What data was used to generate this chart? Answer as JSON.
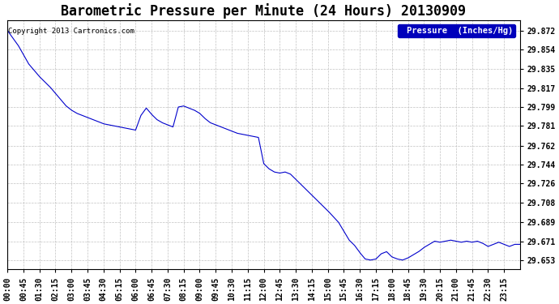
{
  "title": "Barometric Pressure per Minute (24 Hours) 20130909",
  "copyright_text": "Copyright 2013 Cartronics.com",
  "legend_label": "Pressure  (Inches/Hg)",
  "legend_bg": "#0000bb",
  "legend_fg": "#ffffff",
  "line_color": "#0000cc",
  "bg_color": "#ffffff",
  "grid_color": "#bbbbbb",
  "yticks": [
    29.653,
    29.671,
    29.689,
    29.708,
    29.726,
    29.744,
    29.762,
    29.781,
    29.799,
    29.817,
    29.835,
    29.854,
    29.872
  ],
  "ylim": [
    29.644,
    29.882
  ],
  "xtick_labels": [
    "00:00",
    "00:45",
    "01:30",
    "02:15",
    "03:00",
    "03:45",
    "04:30",
    "05:15",
    "06:00",
    "06:45",
    "07:30",
    "08:15",
    "09:00",
    "09:45",
    "10:30",
    "11:15",
    "12:00",
    "12:45",
    "13:30",
    "14:15",
    "15:00",
    "15:45",
    "16:30",
    "17:15",
    "18:00",
    "18:45",
    "19:30",
    "20:15",
    "21:00",
    "21:45",
    "22:30",
    "23:15"
  ],
  "title_fontsize": 12,
  "tick_fontsize": 7,
  "copyright_fontsize": 6.5,
  "legend_fontsize": 7.5,
  "keypoints": [
    [
      0,
      29.872
    ],
    [
      30,
      29.858
    ],
    [
      60,
      29.84
    ],
    [
      90,
      29.828
    ],
    [
      120,
      29.818
    ],
    [
      135,
      29.812
    ],
    [
      150,
      29.806
    ],
    [
      165,
      29.8
    ],
    [
      180,
      29.796
    ],
    [
      195,
      29.793
    ],
    [
      210,
      29.791
    ],
    [
      225,
      29.789
    ],
    [
      240,
      29.787
    ],
    [
      255,
      29.785
    ],
    [
      270,
      29.783
    ],
    [
      285,
      29.782
    ],
    [
      300,
      29.781
    ],
    [
      315,
      29.78
    ],
    [
      330,
      29.779
    ],
    [
      345,
      29.778
    ],
    [
      360,
      29.777
    ],
    [
      375,
      29.791
    ],
    [
      390,
      29.798
    ],
    [
      405,
      29.792
    ],
    [
      420,
      29.787
    ],
    [
      435,
      29.784
    ],
    [
      450,
      29.782
    ],
    [
      465,
      29.78
    ],
    [
      480,
      29.799
    ],
    [
      495,
      29.8
    ],
    [
      510,
      29.798
    ],
    [
      525,
      29.796
    ],
    [
      540,
      29.793
    ],
    [
      555,
      29.788
    ],
    [
      570,
      29.784
    ],
    [
      585,
      29.782
    ],
    [
      600,
      29.78
    ],
    [
      615,
      29.778
    ],
    [
      630,
      29.776
    ],
    [
      645,
      29.774
    ],
    [
      660,
      29.773
    ],
    [
      675,
      29.772
    ],
    [
      690,
      29.771
    ],
    [
      705,
      29.77
    ],
    [
      720,
      29.745
    ],
    [
      735,
      29.74
    ],
    [
      750,
      29.737
    ],
    [
      765,
      29.736
    ],
    [
      780,
      29.737
    ],
    [
      795,
      29.735
    ],
    [
      810,
      29.73
    ],
    [
      840,
      29.72
    ],
    [
      870,
      29.71
    ],
    [
      900,
      29.7
    ],
    [
      930,
      29.689
    ],
    [
      960,
      29.672
    ],
    [
      975,
      29.667
    ],
    [
      990,
      29.66
    ],
    [
      1005,
      29.654
    ],
    [
      1020,
      29.653
    ],
    [
      1035,
      29.654
    ],
    [
      1050,
      29.659
    ],
    [
      1065,
      29.661
    ],
    [
      1080,
      29.656
    ],
    [
      1095,
      29.654
    ],
    [
      1110,
      29.653
    ],
    [
      1125,
      29.655
    ],
    [
      1140,
      29.658
    ],
    [
      1155,
      29.661
    ],
    [
      1170,
      29.665
    ],
    [
      1185,
      29.668
    ],
    [
      1200,
      29.671
    ],
    [
      1215,
      29.67
    ],
    [
      1230,
      29.671
    ],
    [
      1245,
      29.672
    ],
    [
      1260,
      29.671
    ],
    [
      1275,
      29.67
    ],
    [
      1290,
      29.671
    ],
    [
      1305,
      29.67
    ],
    [
      1320,
      29.671
    ],
    [
      1335,
      29.669
    ],
    [
      1350,
      29.666
    ],
    [
      1365,
      29.668
    ],
    [
      1380,
      29.67
    ],
    [
      1395,
      29.668
    ],
    [
      1410,
      29.666
    ],
    [
      1425,
      29.668
    ],
    [
      1439,
      29.668
    ]
  ]
}
